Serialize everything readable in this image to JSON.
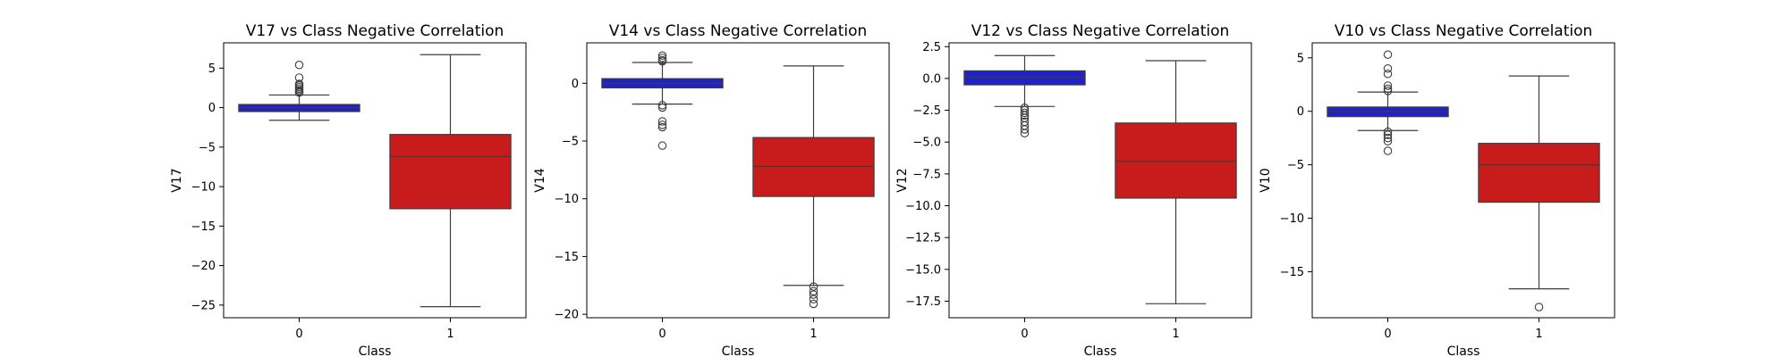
{
  "chart_data": [
    {
      "type": "box",
      "title": "V17 vs Class Negative Correlation",
      "xlabel": "Class",
      "ylabel": "V17",
      "categories": [
        "0",
        "1"
      ],
      "ylim": [
        -26.6,
        8.2
      ],
      "yticks": [
        5,
        0,
        -5,
        -10,
        -15,
        -20,
        -25
      ],
      "ytick_labels": [
        "5",
        "0",
        "−5",
        "−10",
        "−15",
        "−20",
        "−25"
      ],
      "boxes": [
        {
          "category": "0",
          "color": "#2121c8",
          "q1": -0.5,
          "median": 0.0,
          "q3": 0.4,
          "whisker_low": -1.6,
          "whisker_high": 1.6,
          "outliers": [
            5.4,
            3.8,
            3.0,
            2.8,
            2.6,
            2.4,
            2.2,
            2.0,
            1.9
          ]
        },
        {
          "category": "1",
          "color": "#c81b1b",
          "q1": -12.8,
          "median": -6.2,
          "q3": -3.4,
          "whisker_low": -25.2,
          "whisker_high": 6.7,
          "outliers": []
        }
      ]
    },
    {
      "type": "box",
      "title": "V14 vs Class Negative Correlation",
      "xlabel": "Class",
      "ylabel": "V14",
      "categories": [
        "0",
        "1"
      ],
      "ylim": [
        -20.3,
        3.5
      ],
      "yticks": [
        0,
        -5,
        -10,
        -15,
        -20
      ],
      "ytick_labels": [
        "0",
        "−5",
        "−10",
        "−15",
        "−20"
      ],
      "boxes": [
        {
          "category": "0",
          "color": "#2121c8",
          "q1": -0.4,
          "median": 0.0,
          "q3": 0.4,
          "whisker_low": -1.8,
          "whisker_high": 1.8,
          "outliers": [
            2.4,
            2.2,
            2.0,
            1.9,
            -1.9,
            -2.1,
            -3.3,
            -3.6,
            -3.8,
            -5.4
          ]
        },
        {
          "category": "1",
          "color": "#c81b1b",
          "q1": -9.8,
          "median": -7.2,
          "q3": -4.7,
          "whisker_low": -17.5,
          "whisker_high": 1.5,
          "outliers": [
            -17.6,
            -18.0,
            -18.3,
            -18.7,
            -19.1
          ]
        }
      ]
    },
    {
      "type": "box",
      "title": "V12 vs Class Negative Correlation",
      "xlabel": "Class",
      "ylabel": "V12",
      "categories": [
        "0",
        "1"
      ],
      "ylim": [
        -18.8,
        2.8
      ],
      "yticks": [
        2.5,
        0.0,
        -2.5,
        -5.0,
        -7.5,
        -10.0,
        -12.5,
        -15.0,
        -17.5
      ],
      "ytick_labels": [
        "2.5",
        "0.0",
        "−2.5",
        "−5.0",
        "−7.5",
        "−10.0",
        "−12.5",
        "−15.0",
        "−17.5"
      ],
      "boxes": [
        {
          "category": "0",
          "color": "#2121c8",
          "q1": -0.5,
          "median": 0.1,
          "q3": 0.6,
          "whisker_low": -2.2,
          "whisker_high": 1.8,
          "outliers": [
            -2.3,
            -2.5,
            -2.7,
            -2.9,
            -3.1,
            -3.4,
            -3.7,
            -4.0,
            -4.3
          ]
        },
        {
          "category": "1",
          "color": "#c81b1b",
          "q1": -9.4,
          "median": -6.5,
          "q3": -3.5,
          "whisker_low": -17.7,
          "whisker_high": 1.4,
          "outliers": []
        }
      ]
    },
    {
      "type": "box",
      "title": "V10 vs Class Negative Correlation",
      "xlabel": "Class",
      "ylabel": "V10",
      "categories": [
        "0",
        "1"
      ],
      "ylim": [
        -19.3,
        6.4
      ],
      "yticks": [
        5,
        0,
        -5,
        -10,
        -15
      ],
      "ytick_labels": [
        "5",
        "0",
        "−5",
        "−10",
        "−15"
      ],
      "boxes": [
        {
          "category": "0",
          "color": "#2121c8",
          "q1": -0.5,
          "median": 0.0,
          "q3": 0.4,
          "whisker_low": -1.8,
          "whisker_high": 1.8,
          "outliers": [
            5.3,
            4.0,
            3.5,
            2.4,
            2.1,
            1.9,
            -1.9,
            -2.2,
            -2.5,
            -2.8,
            -3.7
          ]
        },
        {
          "category": "1",
          "color": "#c81b1b",
          "q1": -8.5,
          "median": -5.0,
          "q3": -3.0,
          "whisker_low": -16.6,
          "whisker_high": 3.3,
          "outliers": [
            -18.3
          ]
        }
      ]
    }
  ]
}
